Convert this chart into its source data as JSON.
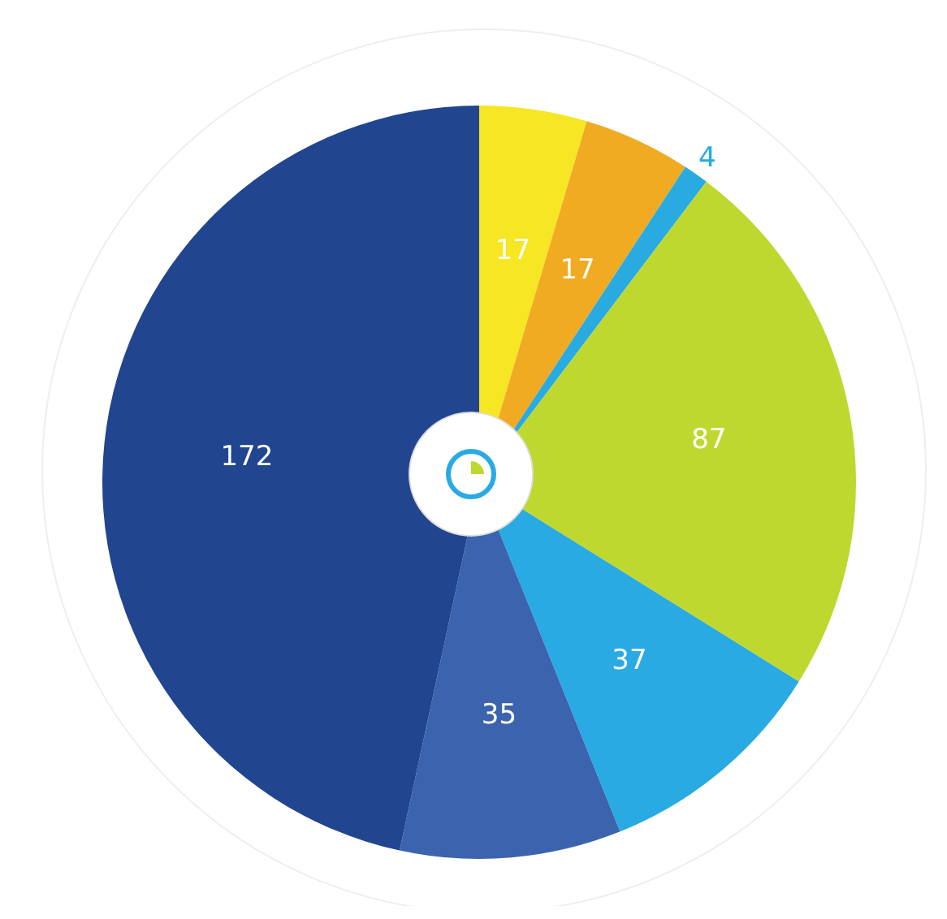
{
  "chart_data": {
    "type": "pie",
    "categories": [
      null,
      null,
      null,
      null,
      null,
      null,
      null
    ],
    "values": [
      17,
      17,
      4,
      87,
      37,
      35,
      172
    ],
    "colors": [
      "#f7e623",
      "#f0ab22",
      "#29abe2",
      "#bfd830",
      "#2aaae3",
      "#3c63ad",
      "#21458f"
    ],
    "data_labels": true,
    "legend": false
  }
}
